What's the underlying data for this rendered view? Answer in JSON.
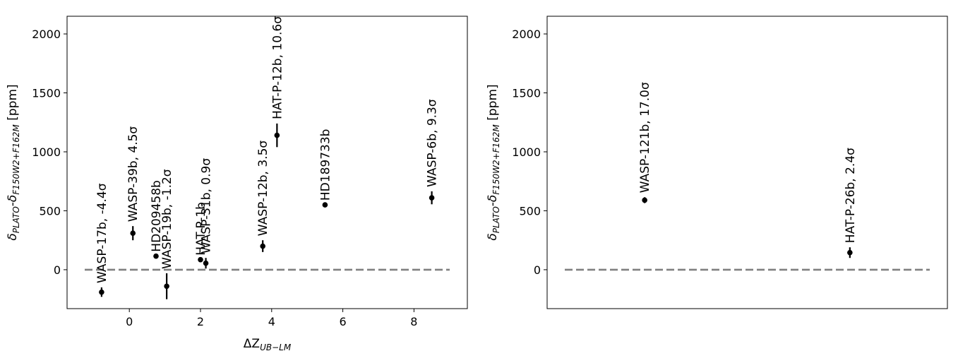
{
  "chart_data": [
    {
      "type": "scatter",
      "xlabel": "ΔZ",
      "xlabel_sub": "UB−LM",
      "ylabel": "δPLATO-δF150W2+F162M [ppm]",
      "ylabel_parts": {
        "a": "δ",
        "a_sub": "PLATO",
        "mid": "-δ",
        "b_sub": "F150W2+F162M",
        "tail": " [ppm]"
      },
      "xlim": [
        -1.75,
        9.5
      ],
      "ylim": [
        -330,
        2150
      ],
      "xticks": [
        0,
        2,
        4,
        6,
        8
      ],
      "yticks": [
        0,
        500,
        1000,
        1500,
        2000
      ],
      "show_xaxis": true,
      "reference_line": 0,
      "points": [
        {
          "x": -0.78,
          "y": -190,
          "err": 40,
          "label": "WASP-17b, -4.4σ"
        },
        {
          "x": 0.1,
          "y": 310,
          "err": 60,
          "label": "WASP-39b, 4.5σ"
        },
        {
          "x": 0.75,
          "y": 115,
          "err": 0,
          "label": "HD209458b"
        },
        {
          "x": 1.05,
          "y": -140,
          "err": 110,
          "label": "WASP-19b, -1.2σ"
        },
        {
          "x": 2.0,
          "y": 85,
          "err": 0,
          "label": "HAT-P-1b"
        },
        {
          "x": 2.15,
          "y": 55,
          "err": 45,
          "label": "WASP-31b, 0.9σ"
        },
        {
          "x": 3.75,
          "y": 200,
          "err": 50,
          "label": "WASP-12b, 3.5σ"
        },
        {
          "x": 4.15,
          "y": 1140,
          "err": 100,
          "label": "HAT-P-12b, 10.6σ"
        },
        {
          "x": 5.5,
          "y": 550,
          "err": 0,
          "label": "HD189733b"
        },
        {
          "x": 8.5,
          "y": 610,
          "err": 55,
          "label": "WASP-6b, 9.3σ"
        }
      ]
    },
    {
      "type": "scatter",
      "xlabel": "",
      "ylabel": "δPLATO-δF150W2+F162M [ppm]",
      "ylabel_parts": {
        "a": "δ",
        "a_sub": "PLATO",
        "mid": "-δ",
        "b_sub": "F150W2+F162M",
        "tail": " [ppm]"
      },
      "xlim": [
        -0.35,
        9.5
      ],
      "ylim": [
        -330,
        2150
      ],
      "xticks": [],
      "yticks": [
        0,
        500,
        1000,
        1500,
        2000
      ],
      "show_xaxis": false,
      "reference_line": 0,
      "points": [
        {
          "x": 2.05,
          "y": 590,
          "err": 25,
          "label": "WASP-121b, 17.0σ"
        },
        {
          "x": 7.1,
          "y": 145,
          "err": 45,
          "label": "HAT-P-26b, 2.4σ"
        }
      ]
    }
  ]
}
